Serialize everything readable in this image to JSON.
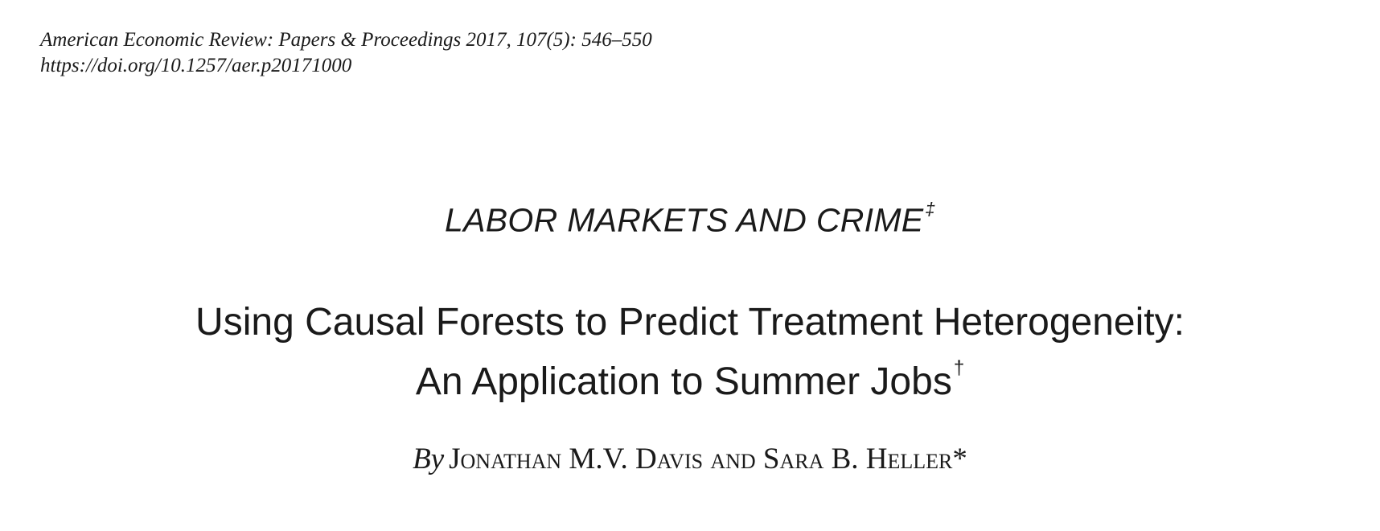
{
  "header": {
    "citation": "American Economic Review: Papers & Proceedings 2017, 107(5): 546–550",
    "doi": "https://doi.org/10.1257/aer.p20171000"
  },
  "section": {
    "title": "LABOR MARKETS AND CRIME",
    "mark": "‡"
  },
  "article": {
    "title_line1": "Using Causal Forests to Predict Treatment Heterogeneity:",
    "title_line2": "An Application to Summer Jobs",
    "title_mark": "†"
  },
  "byline": {
    "prefix": "By",
    "authors": "Jonathan M.V. Davis and Sara B. Heller",
    "mark": "*"
  }
}
